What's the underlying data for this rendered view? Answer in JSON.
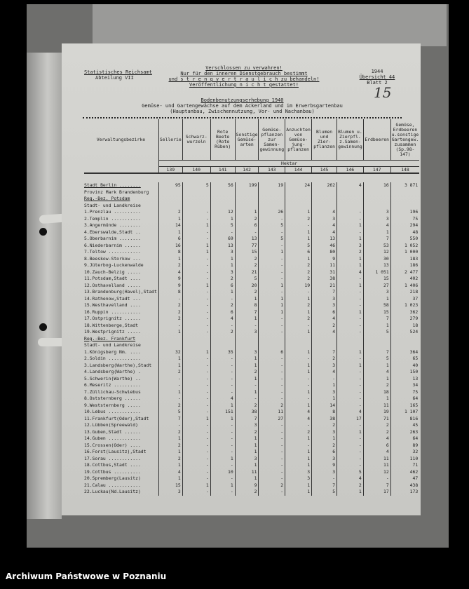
{
  "header": {
    "office": "Statistisches Reichsamt",
    "department": "Abteilung VII",
    "notice": [
      "Verschlossen zu verwahren!",
      "Nur für den inneren Dienstgebrauch bestimmt",
      "und s t r e n g  v e r t r a u l i c h zu behandeln!",
      "Veröffentlichung n i c h t gestattet!"
    ],
    "year": "1944",
    "overview": "Übersicht 44",
    "sheet": "Blatt 2",
    "handwritten_number": "15",
    "title": "Bodenbenutzungserhebung 1940",
    "subtitle": "Gemüse- und Gartengewächse auf dem Ackerland und im Erwerbsgartenbau",
    "subtitle2": "(Hauptanbau, Zwischennutzung, Vor- und Nachanbau)"
  },
  "table": {
    "columns": [
      "Verwaltungsbezirke",
      "Sellerie",
      "Schwarz-wurzeln",
      "Rote Beete (Rote Rüben)",
      "Sonstige Gemüse-arten",
      "Gemüse-pflanzen zur Samen-gewinnung",
      "Anzuchten von Gemüse-jung-pflanzen",
      "Blumen und Zier-pflanzen",
      "Blumen u. Zierpfl. z.Samen-gewinnung",
      "Erdbeeren",
      "Gemüse, Erdbeeren u.sonstige Gartengew. zusammen (Sp.98-147)"
    ],
    "unit": "Hektar",
    "column_numbers": [
      "139",
      "140",
      "141",
      "142",
      "143",
      "144",
      "145",
      "146",
      "147",
      "148"
    ],
    "rows": [
      {
        "label": "Stadt Berlin ........",
        "values": [
          "95",
          "5",
          "56",
          "199",
          "19",
          "24",
          "262",
          "4",
          "16",
          "3 871"
        ]
      },
      {
        "label": "Provinz Mark Brandenburg",
        "values": []
      },
      {
        "label": "Reg.-Bez. Potsdam",
        "values": []
      },
      {
        "label": "Stadt- und Landkreise",
        "values": []
      },
      {
        "label": "1.Prenzlau ..........",
        "values": [
          "2",
          "-",
          "12",
          "1",
          "26",
          "1",
          "4",
          "-",
          "3",
          "196"
        ]
      },
      {
        "label": "2.Templin ...........",
        "values": [
          "1",
          "-",
          "1",
          "2",
          "-",
          "2",
          "3",
          "-",
          "3",
          "75"
        ]
      },
      {
        "label": "3.Angermünde ........",
        "values": [
          "14",
          "1",
          "5",
          "6",
          "5",
          "-",
          "4",
          "1",
          "4",
          "294"
        ]
      },
      {
        "label": "4.Eberswalde,Stadt ..",
        "values": [
          "1",
          "-",
          "-",
          "-",
          "-",
          "1",
          "4",
          "-",
          "1",
          "48"
        ]
      },
      {
        "label": "5.Oberbarnim ........",
        "values": [
          "6",
          "-",
          "69",
          "13",
          "5",
          "1",
          "13",
          "1",
          "7",
          "550"
        ]
      },
      {
        "label": "6.Niederbarnim ......",
        "values": [
          "16",
          "1",
          "13",
          "77",
          "-",
          "5",
          "46",
          "3",
          "53",
          "1 052"
        ]
      },
      {
        "label": "7.Teltow ............",
        "values": [
          "8",
          "1",
          "3",
          "15",
          "1",
          "6",
          "80",
          "2",
          "12",
          "1 000"
        ]
      },
      {
        "label": "8.Beeskow-Storkow ...",
        "values": [
          "1",
          "-",
          "1",
          "2",
          "-",
          "1",
          "9",
          "1",
          "30",
          "183"
        ]
      },
      {
        "label": "9.Jüterbog-Luckenwalde",
        "values": [
          "2",
          "-",
          "1",
          "2",
          "-",
          "2",
          "11",
          "1",
          "13",
          "186"
        ]
      },
      {
        "label": "10.Zauch-Belzig .....",
        "values": [
          "4",
          "-",
          "3",
          "21",
          "-",
          "2",
          "31",
          "4",
          "1 051",
          "2 477"
        ]
      },
      {
        "label": "11.Potsdam,Stadt ....",
        "values": [
          "9",
          "-",
          "2",
          "5",
          "-",
          "2",
          "38",
          "-",
          "15",
          "402"
        ]
      },
      {
        "label": "12.Osthavelland .....",
        "values": [
          "9",
          "1",
          "6",
          "20",
          "1",
          "19",
          "21",
          "1",
          "27",
          "1 406"
        ]
      },
      {
        "label": "13.Brandenburg(Havel),Stadt",
        "values": [
          "8",
          "-",
          "1",
          "2",
          "-",
          "-",
          "7",
          "-",
          "3",
          "218"
        ]
      },
      {
        "label": "14.Rathenow,Stadt ...",
        "values": [
          "-",
          "-",
          "-",
          "1",
          "1",
          "1",
          "3",
          "-",
          "1",
          "37"
        ]
      },
      {
        "label": "15.Westhavelland ....",
        "values": [
          "2",
          "-",
          "2",
          "8",
          "1",
          "2",
          "3",
          "-",
          "58",
          "1 023"
        ]
      },
      {
        "label": "16.Ruppin ...........",
        "values": [
          "2",
          "-",
          "6",
          "7",
          "1",
          "1",
          "6",
          "1",
          "15",
          "362"
        ]
      },
      {
        "label": "17.Ostprignitz ......",
        "values": [
          "2",
          "-",
          "4",
          "1",
          "-",
          "2",
          "4",
          "-",
          "7",
          "279"
        ]
      },
      {
        "label": "18.Wittenberge,Stadt ",
        "values": [
          "-",
          "-",
          "-",
          "-",
          "-",
          "-",
          "2",
          "-",
          "1",
          "18"
        ]
      },
      {
        "label": "19.Westprignitz .....",
        "values": [
          "1",
          "-",
          "2",
          "3",
          "-",
          "1",
          "4",
          "-",
          "5",
          "524"
        ]
      },
      {
        "label": "Reg.-Bez. Frankfurt",
        "values": []
      },
      {
        "label": "Stadt- und Landkreise",
        "values": []
      },
      {
        "label": "1.Königsberg Nm. ....",
        "values": [
          "32",
          "1",
          "35",
          "3",
          "6",
          "1",
          "7",
          "1",
          "7",
          "364"
        ]
      },
      {
        "label": "2.Soldin ............",
        "values": [
          "1",
          "-",
          "-",
          "1",
          "-",
          "-",
          "2",
          "-",
          "5",
          "65"
        ]
      },
      {
        "label": "3.Landsberg(Warthe),Stadt",
        "values": [
          "1",
          "-",
          "-",
          "1",
          "-",
          "1",
          "3",
          "1",
          "1",
          "40"
        ]
      },
      {
        "label": "4.Landsberg(Warthe) .",
        "values": [
          "2",
          "-",
          "-",
          "2",
          "-",
          "1",
          "4",
          "-",
          "4",
          "150"
        ]
      },
      {
        "label": "5.Schwerin(Warthe) ..",
        "values": [
          "-",
          "-",
          "-",
          "1",
          "-",
          "-",
          "-",
          "-",
          "1",
          "13"
        ]
      },
      {
        "label": "6.Meseritz ..........",
        "values": [
          "-",
          "-",
          "-",
          "-",
          "-",
          "-",
          "1",
          "-",
          "2",
          "34"
        ]
      },
      {
        "label": "7.Züllichau-Schwiebus",
        "values": [
          "1",
          "-",
          "-",
          "1",
          "-",
          "1",
          "3",
          "-",
          "18",
          "75"
        ]
      },
      {
        "label": "8.Oststernberg ......",
        "values": [
          "-",
          "-",
          "4",
          "-",
          "-",
          "-",
          "1",
          "-",
          "1",
          "64"
        ]
      },
      {
        "label": "9.Weststernberg .....",
        "values": [
          "2",
          "-",
          "1",
          "2",
          "2",
          "1",
          "14",
          "-",
          "11",
          "165"
        ]
      },
      {
        "label": "10.Lebus ............",
        "values": [
          "5",
          "-",
          "151",
          "38",
          "11",
          "4",
          "8",
          "4",
          "19",
          "1 107"
        ]
      },
      {
        "label": "11.Frankfurt(Oder),Stadt",
        "values": [
          "7",
          "1",
          "1",
          "7",
          "27",
          "4",
          "38",
          "17",
          "71",
          "816"
        ]
      },
      {
        "label": "12.Lübben(Spreewald) ",
        "values": [
          "-",
          "-",
          "-",
          "3",
          "-",
          "-",
          "2",
          "-",
          "2",
          "45"
        ]
      },
      {
        "label": "13.Guben,Stadt ......",
        "values": [
          "2",
          "-",
          "-",
          "2",
          "-",
          "2",
          "3",
          "1",
          "2",
          "263"
        ]
      },
      {
        "label": "14.Guben ............",
        "values": [
          "1",
          "-",
          "-",
          "1",
          "-",
          "1",
          "1",
          "-",
          "4",
          "64"
        ]
      },
      {
        "label": "15.Crossen(Oder) ....",
        "values": [
          "2",
          "-",
          "-",
          "1",
          "-",
          "-",
          "2",
          "-",
          "6",
          "89"
        ]
      },
      {
        "label": "16.Forst(Lausitz),Stadt",
        "values": [
          "1",
          "-",
          "-",
          "1",
          "-",
          "1",
          "6",
          "-",
          "4",
          "32"
        ]
      },
      {
        "label": "17.Sorau ............",
        "values": [
          "2",
          "-",
          "1",
          "3",
          "-",
          "1",
          "3",
          "-",
          "11",
          "110"
        ]
      },
      {
        "label": "18.Cottbus,Stadt ....",
        "values": [
          "1",
          "-",
          "-",
          "1",
          "-",
          "1",
          "9",
          "-",
          "11",
          "71"
        ]
      },
      {
        "label": "19.Cottbus ..........",
        "values": [
          "4",
          "-",
          "10",
          "11",
          "-",
          "3",
          "3",
          "5",
          "12",
          "462"
        ]
      },
      {
        "label": "20.Spremberg(Lausitz)",
        "values": [
          "1",
          "-",
          "-",
          "1",
          "-",
          "3",
          "-",
          "4",
          "-",
          "47"
        ]
      },
      {
        "label": "21.Calau ............",
        "values": [
          "15",
          "1",
          "1",
          "9",
          "2",
          "1",
          "7",
          "2",
          "7",
          "438"
        ]
      },
      {
        "label": "22.Luckau(Nd.Lausitz)",
        "values": [
          "3",
          "-",
          "-",
          "2",
          "-",
          "1",
          "5",
          "1",
          "17",
          "173"
        ]
      }
    ]
  },
  "footer": "Archiwum Państwowe w Poznaniu"
}
